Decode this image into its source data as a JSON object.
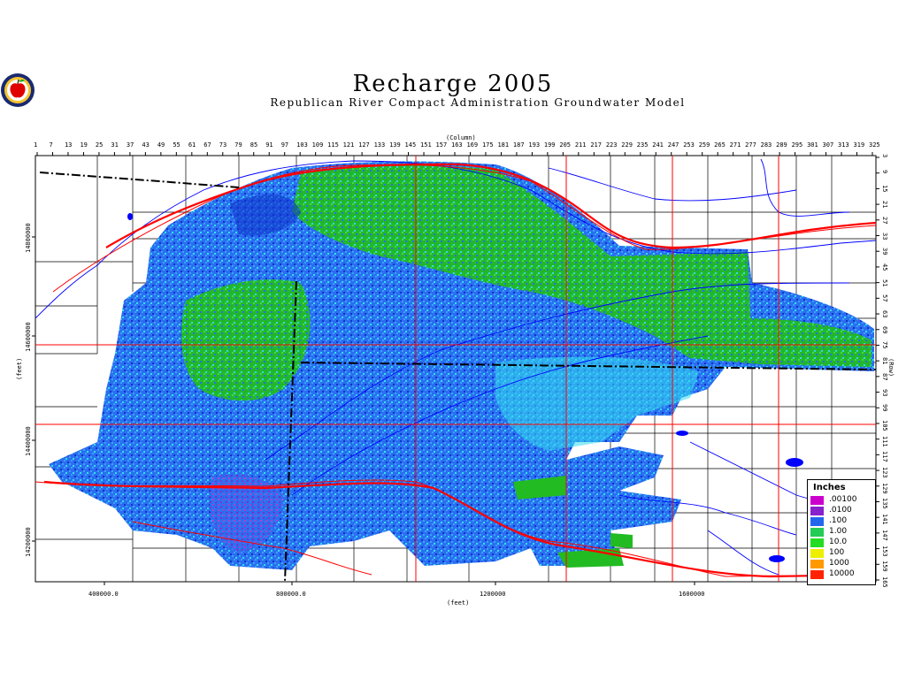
{
  "header": {
    "title": "Recharge 2005",
    "subtitle": "Republican River Compact Administration Groundwater Model"
  },
  "logo": {
    "icon": "apple-logo-icon"
  },
  "axes": {
    "column_label": "(Column)",
    "row_label": "(Row)",
    "x_label": "(feet)",
    "y_label": "(feet)",
    "columns": [
      "1",
      "7",
      "13",
      "19",
      "25",
      "31",
      "37",
      "43",
      "49",
      "55",
      "61",
      "67",
      "73",
      "79",
      "85",
      "91",
      "97",
      "103",
      "109",
      "115",
      "121",
      "127",
      "133",
      "139",
      "145",
      "151",
      "157",
      "163",
      "169",
      "175",
      "181",
      "187",
      "193",
      "199",
      "205",
      "211",
      "217",
      "223",
      "229",
      "235",
      "241",
      "247",
      "253",
      "259",
      "265",
      "271",
      "277",
      "283",
      "289",
      "295",
      "301",
      "307",
      "313",
      "319",
      "325"
    ],
    "rows": [
      "3",
      "9",
      "15",
      "21",
      "27",
      "33",
      "39",
      "45",
      "51",
      "57",
      "63",
      "69",
      "75",
      "81",
      "87",
      "93",
      "99",
      "105",
      "111",
      "117",
      "123",
      "129",
      "135",
      "141",
      "147",
      "153",
      "159",
      "165"
    ],
    "x_ticks": [
      "400000.0",
      "800000.0",
      "1200000",
      "1600000"
    ],
    "y_ticks": [
      "14800000",
      "14600000",
      "14400000",
      "14200000"
    ]
  },
  "legend": {
    "title": "Inches",
    "items": [
      {
        "label": ".00100",
        "color": "#cc00cc"
      },
      {
        "label": ".0100",
        "color": "#8822cc"
      },
      {
        "label": ".100",
        "color": "#2266ee"
      },
      {
        "label": "1.00",
        "color": "#22cc55"
      },
      {
        "label": "10.0",
        "color": "#22dd22"
      },
      {
        "label": "100",
        "color": "#eeee00"
      },
      {
        "label": "1000",
        "color": "#ff9900"
      },
      {
        "label": "10000",
        "color": "#ff2200"
      }
    ]
  },
  "map_colors": {
    "blue_dark": "#1133cc",
    "blue": "#2a6ff0",
    "blue_light": "#3aa0ff",
    "cyan": "#33ddee",
    "green": "#22bb22",
    "green_light": "#44dd44",
    "magenta": "#cc33cc",
    "river": "#0000ff",
    "road": "#ff0000",
    "boundary": "#000000"
  }
}
